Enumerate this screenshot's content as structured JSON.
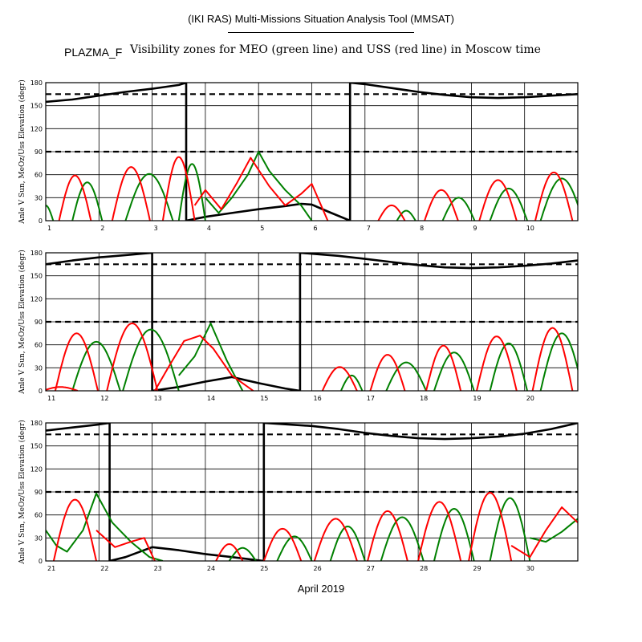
{
  "header": {
    "tool_title": "(IKI RAS) Multi-Missions Situation Analysis Tool (MMSAT)",
    "mission": "PLAZMA_F",
    "subtitle": "Visibility zones for MEO (green line) and USS (red line) in Moscow time"
  },
  "footer": {
    "x_caption": "April 2019"
  },
  "colors": {
    "meo_line": "#008000",
    "uss_line": "#ff0000",
    "sun_angle_line": "#000000",
    "reference_lines": "#000000",
    "grid": "#000000"
  },
  "chart_data": [
    {
      "type": "line",
      "ylabel": "Anle V Sun, MeOz/Uss Elevation (degr)",
      "xlim": [
        1,
        11
      ],
      "ylim": [
        0,
        180
      ],
      "x_ticks": [
        "1",
        "2",
        "3",
        "4",
        "5",
        "6",
        "7",
        "8",
        "9",
        "10"
      ],
      "y_ticks": [
        "0",
        "30",
        "60",
        "90",
        "120",
        "150",
        "180"
      ],
      "reference_lines": [
        90,
        165
      ],
      "grid": true,
      "series": [
        {
          "role": "sun_angle",
          "x": [
            1.0,
            1.5,
            2.0,
            2.5,
            3.0,
            3.5,
            3.64,
            3.64,
            4.0,
            4.5,
            5.0,
            5.5,
            5.8,
            6.0,
            6.3,
            6.72,
            6.72,
            7.0,
            7.5,
            8.0,
            8.5,
            9.0,
            9.5,
            10.0,
            10.5,
            11.0
          ],
          "values": [
            155,
            158,
            163,
            168,
            172,
            177,
            180,
            0,
            5,
            10,
            15,
            19,
            22,
            21,
            12,
            0,
            180,
            178,
            173,
            168,
            164,
            161,
            160,
            161,
            163,
            165
          ]
        },
        {
          "role": "meo",
          "arcs": [
            [
              0.85,
              1.14,
              20
            ],
            [
              1.5,
              2.06,
              50
            ],
            [
              2.5,
              3.39,
              61
            ],
            [
              3.5,
              4.0,
              74
            ]
          ],
          "segments": [
            [
              3.5,
              4.0,
              4.0,
              4.0,
              4.68,
              74,
              30,
              30,
              30,
              90
            ]
          ]
        },
        {
          "role": "meo_trace",
          "x": [
            4.0,
            4.25,
            4.5,
            4.8,
            5.0,
            5.2,
            5.5,
            5.8,
            6.0
          ],
          "values": [
            30,
            10,
            30,
            60,
            90,
            65,
            40,
            20,
            0
          ]
        },
        {
          "role": "meo_more",
          "arcs": [
            [
              7.6,
              7.95,
              13
            ],
            [
              8.46,
              9.06,
              30
            ],
            [
              9.35,
              10.05,
              42
            ],
            [
              10.3,
              11.1,
              55
            ]
          ]
        },
        {
          "role": "uss",
          "arcs": [
            [
              1.25,
              1.85,
              59
            ],
            [
              2.25,
              2.96,
              70
            ],
            [
              3.2,
              3.8,
              83
            ]
          ]
        },
        {
          "role": "uss_trace",
          "x": [
            3.8,
            4.0,
            4.3,
            4.6,
            4.85,
            5.2,
            5.5,
            5.8,
            6.0,
            6.3
          ],
          "values": [
            20,
            40,
            15,
            50,
            82,
            45,
            20,
            35,
            48,
            0
          ]
        },
        {
          "role": "uss_more",
          "arcs": [
            [
              7.25,
              7.75,
              20
            ],
            [
              8.12,
              8.75,
              40
            ],
            [
              9.15,
              9.85,
              53
            ],
            [
              10.2,
              10.9,
              63
            ]
          ]
        }
      ]
    },
    {
      "type": "line",
      "ylabel": "Anle V Sun, MeOz/Uss Elevation (degr)",
      "xlim": [
        11,
        21
      ],
      "ylim": [
        0,
        180
      ],
      "x_ticks": [
        "11",
        "12",
        "13",
        "14",
        "15",
        "16",
        "17",
        "18",
        "19",
        "20"
      ],
      "y_ticks": [
        "0",
        "30",
        "60",
        "90",
        "120",
        "150",
        "180"
      ],
      "reference_lines": [
        90,
        165
      ],
      "grid": true,
      "series": [
        {
          "role": "sun_angle",
          "x": [
            11.0,
            11.5,
            12.0,
            12.5,
            13.0,
            13.0,
            13.5,
            14.0,
            14.5,
            15.0,
            15.5,
            15.78,
            15.78,
            16.5,
            17.0,
            17.5,
            18.0,
            18.5,
            19.0,
            19.5,
            20.0,
            20.5,
            21.0
          ],
          "values": [
            165,
            170,
            174,
            177,
            180,
            0,
            5,
            12,
            18,
            10,
            3,
            0,
            180,
            176,
            172,
            168,
            164,
            161,
            160,
            161,
            163,
            166,
            170
          ]
        },
        {
          "role": "meo",
          "arcs": [
            [
              11.5,
              12.4,
              64
            ],
            [
              12.45,
              13.5,
              80
            ]
          ]
        },
        {
          "role": "meo_trace",
          "x": [
            13.5,
            13.8,
            14.1,
            14.4,
            14.7
          ],
          "values": [
            20,
            45,
            88,
            40,
            0
          ]
        },
        {
          "role": "meo_more",
          "arcs": [
            [
              16.55,
              16.95,
              20
            ],
            [
              17.4,
              18.15,
              37
            ],
            [
              18.3,
              19.05,
              50
            ],
            [
              19.35,
              20.05,
              62
            ],
            [
              20.3,
              21.1,
              75
            ]
          ]
        },
        {
          "role": "uss",
          "arcs": [
            [
              10.95,
              11.6,
              5
            ],
            [
              11.18,
              11.98,
              75
            ],
            [
              12.15,
              13.1,
              88
            ]
          ]
        },
        {
          "role": "uss_trace",
          "x": [
            13.05,
            13.3,
            13.6,
            13.9,
            14.15,
            14.5,
            14.9
          ],
          "values": [
            0,
            30,
            65,
            72,
            55,
            20,
            0
          ]
        },
        {
          "role": "uss_more",
          "arcs": [
            [
              16.2,
              16.85,
              31
            ],
            [
              17.1,
              17.75,
              47
            ],
            [
              18.15,
              18.8,
              59
            ],
            [
              19.1,
              19.85,
              71
            ],
            [
              20.15,
              20.9,
              82
            ]
          ]
        }
      ]
    },
    {
      "type": "line",
      "ylabel": "Anle V Sun, MeOz/Uss Elevation (degr)",
      "xlim": [
        21,
        31
      ],
      "ylim": [
        0,
        180
      ],
      "x_ticks": [
        "21",
        "22",
        "23",
        "24",
        "25",
        "26",
        "27",
        "28",
        "29",
        "30"
      ],
      "y_ticks": [
        "0",
        "30",
        "60",
        "90",
        "120",
        "150",
        "180"
      ],
      "reference_lines": [
        90,
        165
      ],
      "grid": true,
      "series": [
        {
          "role": "sun_angle",
          "x": [
            21.0,
            21.5,
            22.0,
            22.2,
            22.2,
            22.5,
            23.0,
            23.5,
            24.0,
            24.5,
            25.1,
            25.1,
            26.0,
            26.5,
            27.0,
            27.5,
            28.0,
            28.5,
            29.0,
            29.5,
            30.0,
            30.5,
            31.0
          ],
          "values": [
            170,
            174,
            178,
            180,
            0,
            5,
            18,
            14,
            9,
            5,
            0,
            180,
            176,
            172,
            167,
            163,
            160,
            159,
            160,
            162,
            166,
            172,
            180
          ]
        },
        {
          "role": "meo_trace",
          "x": [
            21.0,
            21.2,
            21.4,
            21.7,
            21.95,
            22.25,
            22.6,
            22.95,
            23.2
          ],
          "values": [
            40,
            20,
            12,
            40,
            88,
            50,
            25,
            5,
            0
          ]
        },
        {
          "role": "meo_more",
          "arcs": [
            [
              24.45,
              24.95,
              17
            ],
            [
              25.35,
              26.0,
              32
            ],
            [
              26.35,
              27.0,
              45
            ],
            [
              27.3,
              28.1,
              57
            ],
            [
              28.3,
              29.05,
              68
            ],
            [
              29.35,
              30.1,
              82
            ]
          ]
        },
        {
          "role": "meo_tail",
          "x": [
            30.1,
            30.4,
            30.7,
            31.0
          ],
          "values": [
            30,
            25,
            38,
            55
          ]
        },
        {
          "role": "uss",
          "arcs": [
            [
              21.15,
              21.95,
              80
            ]
          ]
        },
        {
          "role": "uss_trace",
          "x": [
            21.95,
            22.3,
            22.6,
            22.85,
            23.05
          ],
          "values": [
            40,
            18,
            25,
            30,
            0
          ]
        },
        {
          "role": "uss_more",
          "arcs": [
            [
              24.2,
              24.7,
              22
            ],
            [
              25.1,
              25.8,
              42
            ],
            [
              26.05,
              26.85,
              55
            ],
            [
              27.05,
              27.8,
              65
            ],
            [
              28.0,
              28.8,
              77
            ],
            [
              28.95,
              29.75,
              89
            ]
          ]
        },
        {
          "role": "uss_tail",
          "x": [
            29.75,
            30.1,
            30.4,
            30.7,
            31.0
          ],
          "values": [
            20,
            5,
            40,
            70,
            50
          ]
        }
      ]
    }
  ]
}
